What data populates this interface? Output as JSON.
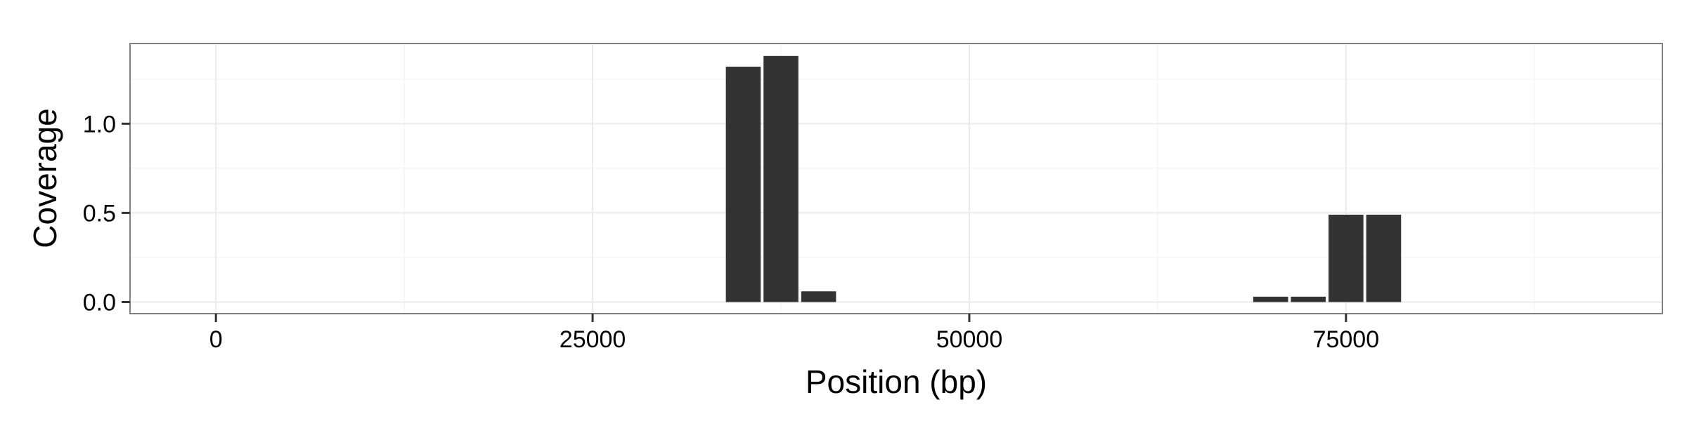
{
  "chart_data": {
    "type": "bar",
    "xlabel": "Position (bp)",
    "ylabel": "Coverage",
    "xlim": [
      -5700,
      96000
    ],
    "ylim": [
      -0.065,
      1.45
    ],
    "x_ticks": [
      0,
      25000,
      50000,
      75000
    ],
    "x_tick_labels": [
      "0",
      "25000",
      "50000",
      "75000"
    ],
    "y_ticks": [
      0.0,
      0.5,
      1.0
    ],
    "y_tick_labels": [
      "0.0",
      "0.5",
      "1.0"
    ],
    "bin_width": 2500,
    "bars": [
      {
        "x": 35000,
        "value": 1.32
      },
      {
        "x": 37500,
        "value": 1.38
      },
      {
        "x": 40000,
        "value": 0.06
      },
      {
        "x": 70000,
        "value": 0.03
      },
      {
        "x": 72500,
        "value": 0.03
      },
      {
        "x": 75000,
        "value": 0.49
      },
      {
        "x": 77500,
        "value": 0.49
      }
    ],
    "grid": true,
    "bar_color": "#333333",
    "panel_background": "#ffffff",
    "grid_color": "#ebebeb",
    "border_color": "#7f7f7f"
  }
}
